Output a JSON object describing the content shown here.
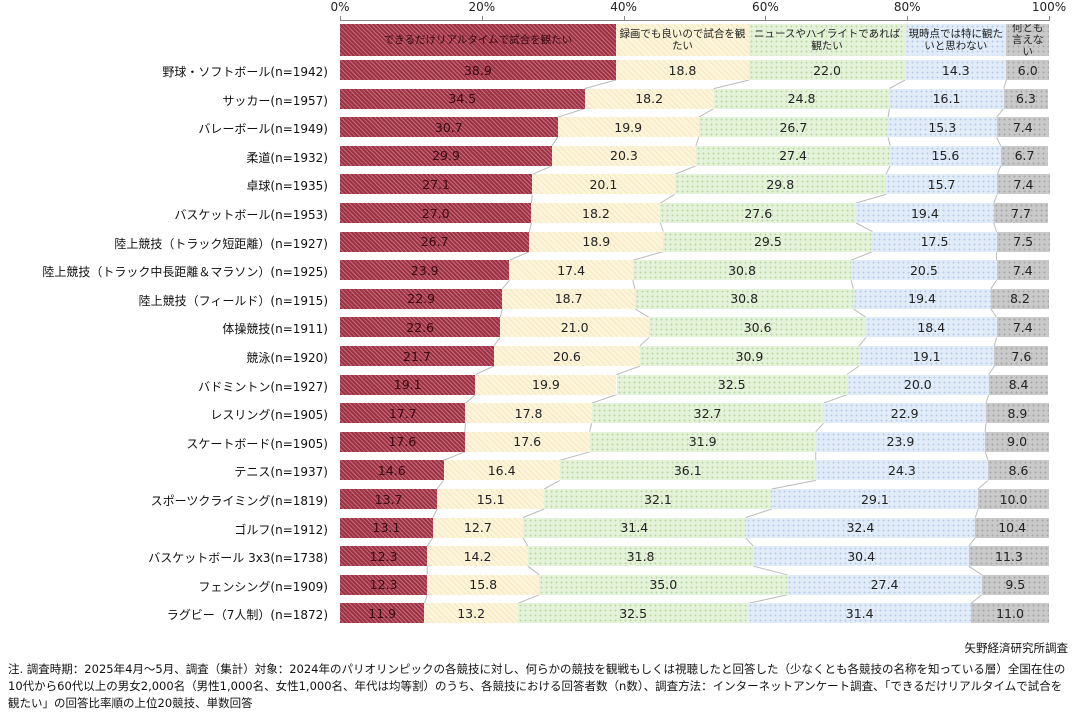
{
  "chart_data": {
    "type": "bar",
    "orientation": "horizontal-stacked-100",
    "xlim": [
      0,
      100
    ],
    "xticks": [
      "0%",
      "20%",
      "40%",
      "60%",
      "80%",
      "100%"
    ],
    "legend_placement": "top",
    "series_names": [
      "できるだけリアルタイムで試合を観たい",
      "録画でも良いので試合を観たい",
      "ニュースやハイライトであれば観たい",
      "現時点では特に観たいと思わない",
      "何とも言えない"
    ],
    "colors": [
      "#9c3344",
      "#fdf4dc",
      "#e5f2da",
      "#e1ecf8",
      "#c9c9c9"
    ],
    "legend_values": [
      "38.9",
      "18.8",
      "22.0",
      "14.3",
      "6.0"
    ],
    "categories": [
      "野球・ソフトボール(n=1942)",
      "サッカー(n=1957)",
      "バレーボール(n=1949)",
      "柔道(n=1932)",
      "卓球(n=1935)",
      "バスケットボール(n=1953)",
      "陸上競技（トラック短距離）(n=1927)",
      "陸上競技（トラック中長距離＆マラソン）(n=1925)",
      "陸上競技（フィールド）(n=1915)",
      "体操競技(n=1911)",
      "競泳(n=1920)",
      "バドミントン(n=1927)",
      "レスリング(n=1905)",
      "スケートボード(n=1905)",
      "テニス(n=1937)",
      "スポーツクライミング(n=1819)",
      "ゴルフ(n=1912)",
      "バスケットボール 3x3(n=1738)",
      "フェンシング(n=1909)",
      "ラグビー（7人制）(n=1872)"
    ],
    "values": [
      [
        38.9,
        18.8,
        22.0,
        14.3,
        6.0
      ],
      [
        34.5,
        18.2,
        24.8,
        16.1,
        6.3
      ],
      [
        30.7,
        19.9,
        26.7,
        15.3,
        7.4
      ],
      [
        29.9,
        20.3,
        27.4,
        15.6,
        6.7
      ],
      [
        27.1,
        20.1,
        29.8,
        15.7,
        7.4
      ],
      [
        27.0,
        18.2,
        27.6,
        19.4,
        7.7
      ],
      [
        26.7,
        18.9,
        29.5,
        17.5,
        7.5
      ],
      [
        23.9,
        17.4,
        30.8,
        20.5,
        7.4
      ],
      [
        22.9,
        18.7,
        30.8,
        19.4,
        8.2
      ],
      [
        22.6,
        21.0,
        30.6,
        18.4,
        7.4
      ],
      [
        21.7,
        20.6,
        30.9,
        19.1,
        7.6
      ],
      [
        19.1,
        19.9,
        32.5,
        20.0,
        8.4
      ],
      [
        17.7,
        17.8,
        32.7,
        22.9,
        8.9
      ],
      [
        17.6,
        17.6,
        31.9,
        23.9,
        9.0
      ],
      [
        14.6,
        16.4,
        36.1,
        24.3,
        8.6
      ],
      [
        13.7,
        15.1,
        32.1,
        29.1,
        10.0
      ],
      [
        13.1,
        12.7,
        31.4,
        32.4,
        10.4
      ],
      [
        12.3,
        14.2,
        31.8,
        30.4,
        11.3
      ],
      [
        12.3,
        15.8,
        35.0,
        27.4,
        9.5
      ],
      [
        11.9,
        13.2,
        32.5,
        31.4,
        11.0
      ]
    ]
  },
  "source": "矢野経済研究所調査",
  "note": "注. 調査時期：2025年4月～5月、調査（集計）対象：2024年のパリオリンピックの各競技に対し、何らかの競技を観戦もしくは視聴したと回答した（少なくとも各競技の名称を知っている層）全国在住の10代から60代以上の男女2,000名（男性1,000名、女性1,000名、年代は均等割）のうち、各競技における回答者数（n数）、調査方法：インターネットアンケート調査、「できるだけリアルタイムで試合を観たい」の回答比率順の上位20競技、単数回答"
}
